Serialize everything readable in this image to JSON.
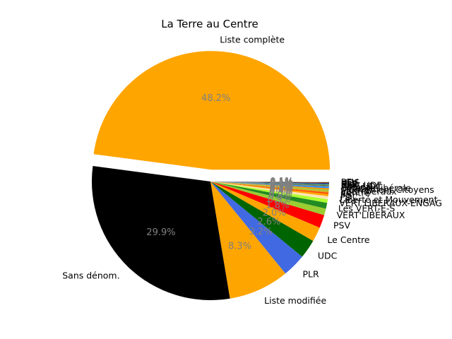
{
  "chart_data": {
    "type": "pie",
    "title": "La Terre au Centre",
    "start_angle_deg": 0,
    "direction": "counterclockwise",
    "slices": [
      {
        "label": "Liste complète",
        "value": 48.2,
        "pct_text": "48.2%",
        "color": "#ffa500",
        "explode": true
      },
      {
        "label": "Sans dénom.",
        "value": 29.9,
        "pct_text": "29.9%",
        "color": "#000000"
      },
      {
        "label": "Liste modifiée",
        "value": 8.3,
        "pct_text": "8.3%",
        "color": "#ffa500"
      },
      {
        "label": "PLR",
        "value": 3.2,
        "pct_text": "3.2%",
        "color": "#4169e1"
      },
      {
        "label": "UDC",
        "value": 2.6,
        "pct_text": "2.6%",
        "color": "#006400"
      },
      {
        "label": "Le Centre",
        "value": 2.0,
        "pct_text": "2.0%",
        "color": "#ffa500"
      },
      {
        "label": "PSV",
        "value": 1.8,
        "pct_text": "1.8%",
        "color": "#ff0000"
      },
      {
        "label": "VERT'LIBÉRAUX",
        "value": 0.9,
        "pct_text": "0.9%",
        "color": "#9acd32"
      },
      {
        "label": "Les VERT-E-S",
        "value": 0.8,
        "pct_text": "0.8%",
        "color": "#228b22"
      },
      {
        "label": "VERT'LIBERAUX-ENGAG",
        "value": 0.5,
        "pct_text": "0.5%",
        "color": "#adff2f"
      },
      {
        "label": "Liberté et Mouvement",
        "value": 0.4,
        "pct_text": "0.4%",
        "color": "#ffe4b5"
      },
      {
        "label": "PDC",
        "value": 0.3,
        "pct_text": "0.3%",
        "color": "#ffa500"
      },
      {
        "label": "PS",
        "value": 0.2,
        "pct_text": "0.2%",
        "color": "#ff4500"
      },
      {
        "label": "Centre",
        "value": 0.2,
        "pct_text": "0.2%",
        "color": "#daa520"
      },
      {
        "label": "Vert'libéraux",
        "value": 0.2,
        "pct_text": "0.2%",
        "color": "#9acd32"
      },
      {
        "label": "Mouvement Citoyens",
        "value": 0.2,
        "pct_text": "0.2%",
        "color": "#ff8c00"
      },
      {
        "label": "Entente libérale",
        "value": 0.2,
        "pct_text": "0.2%",
        "color": "#1e90ff"
      },
      {
        "label": "Radical",
        "value": 0.1,
        "pct_text": "0.1%",
        "color": "#808080"
      },
      {
        "label": "PDC-UDC",
        "value": 0.1,
        "pct_text": "0.1%",
        "color": "#556b2f"
      },
      {
        "label": "UDC-UDF",
        "value": 0.1,
        "pct_text": "0.1%",
        "color": "#2e8b57"
      },
      {
        "label": "PRD",
        "value": 0.1,
        "pct_text": "0.1%",
        "color": "#4682b4"
      },
      {
        "label": "PLS",
        "value": 0.1,
        "pct_text": "0.1%",
        "color": "#191970"
      },
      {
        "label": "UDF",
        "value": 0.1,
        "pct_text": "0.1%",
        "color": "#8b4513"
      },
      {
        "label": "PEV",
        "value": 0.1,
        "pct_text": "0.1%",
        "color": "#dcdcdc"
      }
    ]
  }
}
